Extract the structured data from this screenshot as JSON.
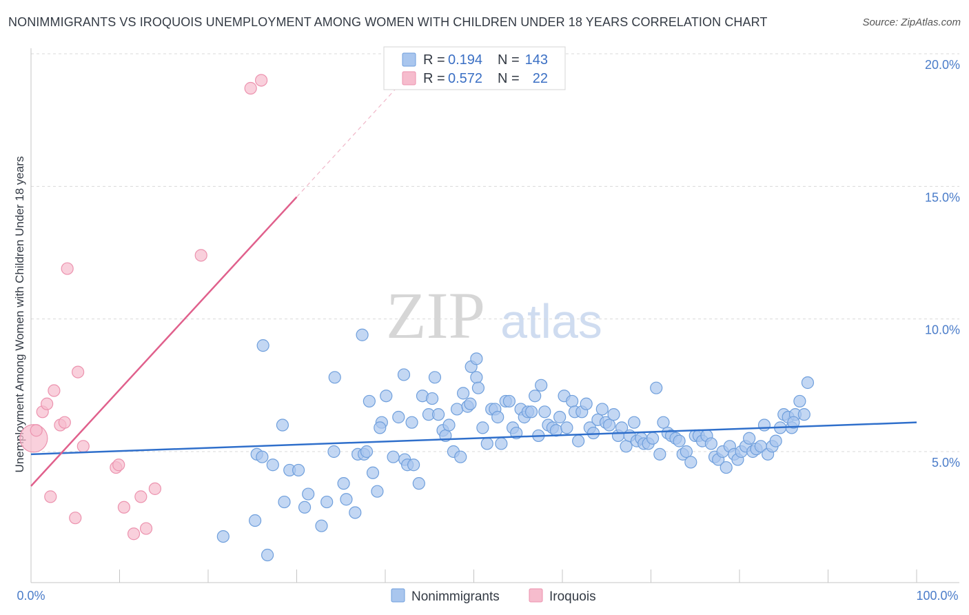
{
  "title": "NONIMMIGRANTS VS IROQUOIS UNEMPLOYMENT AMONG WOMEN WITH CHILDREN UNDER 18 YEARS CORRELATION CHART",
  "source": "Source: ZipAtlas.com",
  "colors": {
    "nonimmigrants_fill": "#a9c6ee",
    "nonimmigrants_stroke": "#6f9fdc",
    "nonimmigrants_line": "#2f6fcb",
    "iroquois_fill": "#f6bccd",
    "iroquois_stroke": "#ec92ae",
    "iroquois_line": "#e0608c",
    "tick_text": "#4a7cc9",
    "grid": "#d9d9d9"
  },
  "legend": {
    "r_label": "R =",
    "n_label": "N =",
    "rows": [
      {
        "series": "Nonimmigrants",
        "r": "0.194",
        "n": "143"
      },
      {
        "series": "Iroquois",
        "r": "0.572",
        "n": "22"
      }
    ]
  },
  "chart_data": {
    "type": "scatter",
    "title": "NONIMMIGRANTS VS IROQUOIS UNEMPLOYMENT AMONG WOMEN WITH CHILDREN UNDER 18 YEARS CORRELATION CHART",
    "xlabel": "",
    "ylabel": "Unemployment Among Women with Children Under 18 years",
    "xlim": [
      0,
      100
    ],
    "ylim": [
      0,
      20.5
    ],
    "x_tick_labels": [
      "0.0%",
      "100.0%"
    ],
    "y_ticks": [
      5,
      10,
      15,
      20
    ],
    "y_tick_labels": [
      "5.0%",
      "10.0%",
      "15.0%",
      "20.0%"
    ],
    "grid": "horizontal dashed",
    "legend_position": "top-center",
    "watermark": {
      "zip": "ZIP",
      "atlas": "atlas"
    },
    "series": [
      {
        "name": "Nonimmigrants",
        "r": 0.194,
        "n": 143,
        "trend": {
          "x": [
            0,
            100
          ],
          "y": [
            4.9,
            6.1
          ]
        },
        "points": [
          [
            21.7,
            1.8
          ],
          [
            25.3,
            2.4
          ],
          [
            25.5,
            4.9
          ],
          [
            26.1,
            4.8
          ],
          [
            26.2,
            9.0
          ],
          [
            26.7,
            1.1
          ],
          [
            27.3,
            4.5
          ],
          [
            28.4,
            6.0
          ],
          [
            28.6,
            3.1
          ],
          [
            29.2,
            4.3
          ],
          [
            30.2,
            4.3
          ],
          [
            30.9,
            2.9
          ],
          [
            31.3,
            3.4
          ],
          [
            32.8,
            2.2
          ],
          [
            33.4,
            3.1
          ],
          [
            34.2,
            5.0
          ],
          [
            34.3,
            7.8
          ],
          [
            35.3,
            3.8
          ],
          [
            35.6,
            3.2
          ],
          [
            36.6,
            2.7
          ],
          [
            36.9,
            4.9
          ],
          [
            37.6,
            4.9
          ],
          [
            37.9,
            5.0
          ],
          [
            37.4,
            9.4
          ],
          [
            38.2,
            6.9
          ],
          [
            38.6,
            4.2
          ],
          [
            39.1,
            3.5
          ],
          [
            39.6,
            6.1
          ],
          [
            39.4,
            5.9
          ],
          [
            40.1,
            7.1
          ],
          [
            40.9,
            4.8
          ],
          [
            41.5,
            6.3
          ],
          [
            42.2,
            4.7
          ],
          [
            42.5,
            4.5
          ],
          [
            42.1,
            7.9
          ],
          [
            43.0,
            6.1
          ],
          [
            43.2,
            4.5
          ],
          [
            43.8,
            3.8
          ],
          [
            44.2,
            7.1
          ],
          [
            44.9,
            6.4
          ],
          [
            45.3,
            7.0
          ],
          [
            45.6,
            7.8
          ],
          [
            46.0,
            6.4
          ],
          [
            46.5,
            5.8
          ],
          [
            46.8,
            5.6
          ],
          [
            47.2,
            6.0
          ],
          [
            47.7,
            5.0
          ],
          [
            48.1,
            6.6
          ],
          [
            48.5,
            4.8
          ],
          [
            48.8,
            7.2
          ],
          [
            49.3,
            6.7
          ],
          [
            49.6,
            6.8
          ],
          [
            49.7,
            8.2
          ],
          [
            50.3,
            7.8
          ],
          [
            50.5,
            7.4
          ],
          [
            50.3,
            8.5
          ],
          [
            51.0,
            5.9
          ],
          [
            51.5,
            5.3
          ],
          [
            52.0,
            6.6
          ],
          [
            52.4,
            6.6
          ],
          [
            52.7,
            6.3
          ],
          [
            53.1,
            5.3
          ],
          [
            53.6,
            6.9
          ],
          [
            54.0,
            6.9
          ],
          [
            54.4,
            5.9
          ],
          [
            54.8,
            5.7
          ],
          [
            55.3,
            6.6
          ],
          [
            55.7,
            6.3
          ],
          [
            56.1,
            6.5
          ],
          [
            56.5,
            6.5
          ],
          [
            56.9,
            7.1
          ],
          [
            57.3,
            5.6
          ],
          [
            57.6,
            7.5
          ],
          [
            58.0,
            6.5
          ],
          [
            58.4,
            6.0
          ],
          [
            58.9,
            5.9
          ],
          [
            59.3,
            5.8
          ],
          [
            59.7,
            6.3
          ],
          [
            60.2,
            7.1
          ],
          [
            60.5,
            5.9
          ],
          [
            61.1,
            6.9
          ],
          [
            61.4,
            6.5
          ],
          [
            61.8,
            5.4
          ],
          [
            62.2,
            6.5
          ],
          [
            62.7,
            6.8
          ],
          [
            63.1,
            5.9
          ],
          [
            63.5,
            5.7
          ],
          [
            64.0,
            6.2
          ],
          [
            64.5,
            6.6
          ],
          [
            64.9,
            6.1
          ],
          [
            65.3,
            6.0
          ],
          [
            65.8,
            6.4
          ],
          [
            66.3,
            5.6
          ],
          [
            66.7,
            5.9
          ],
          [
            67.2,
            5.2
          ],
          [
            67.6,
            5.6
          ],
          [
            68.1,
            6.1
          ],
          [
            68.4,
            5.4
          ],
          [
            68.9,
            5.5
          ],
          [
            69.2,
            5.3
          ],
          [
            69.7,
            5.3
          ],
          [
            70.2,
            5.5
          ],
          [
            70.6,
            7.4
          ],
          [
            71.0,
            4.9
          ],
          [
            71.4,
            6.1
          ],
          [
            71.9,
            5.7
          ],
          [
            72.3,
            5.6
          ],
          [
            72.8,
            5.5
          ],
          [
            73.2,
            5.4
          ],
          [
            73.6,
            4.9
          ],
          [
            74.0,
            5.0
          ],
          [
            74.5,
            4.6
          ],
          [
            75.0,
            5.6
          ],
          [
            75.4,
            5.6
          ],
          [
            75.8,
            5.4
          ],
          [
            76.3,
            5.6
          ],
          [
            76.8,
            5.3
          ],
          [
            77.2,
            4.8
          ],
          [
            77.6,
            4.7
          ],
          [
            78.1,
            5.0
          ],
          [
            78.5,
            4.4
          ],
          [
            78.9,
            5.2
          ],
          [
            79.4,
            4.9
          ],
          [
            79.8,
            4.7
          ],
          [
            80.2,
            5.0
          ],
          [
            80.7,
            5.2
          ],
          [
            81.1,
            5.5
          ],
          [
            81.5,
            5.0
          ],
          [
            81.9,
            5.1
          ],
          [
            82.4,
            5.2
          ],
          [
            82.8,
            6.0
          ],
          [
            83.2,
            4.9
          ],
          [
            83.7,
            5.2
          ],
          [
            84.1,
            5.4
          ],
          [
            84.6,
            5.9
          ],
          [
            85.0,
            6.4
          ],
          [
            85.5,
            6.3
          ],
          [
            85.9,
            5.9
          ],
          [
            86.3,
            6.4
          ],
          [
            86.8,
            6.9
          ],
          [
            87.3,
            6.4
          ],
          [
            87.7,
            7.6
          ],
          [
            86.1,
            6.1
          ]
        ]
      },
      {
        "name": "Iroquois",
        "r": 0.572,
        "n": 22,
        "trend": {
          "x": [
            0,
            30
          ],
          "y": [
            3.7,
            14.6
          ]
        },
        "trend_dashed": {
          "x": [
            30,
            50
          ],
          "y": [
            14.6,
            21.9
          ]
        },
        "points": [
          [
            0.3,
            5.5
          ],
          [
            0.6,
            5.8
          ],
          [
            1.3,
            6.5
          ],
          [
            1.8,
            6.8
          ],
          [
            2.2,
            3.3
          ],
          [
            2.6,
            7.3
          ],
          [
            3.3,
            6.0
          ],
          [
            3.8,
            6.1
          ],
          [
            4.1,
            11.9
          ],
          [
            5.0,
            2.5
          ],
          [
            5.3,
            8.0
          ],
          [
            5.9,
            5.2
          ],
          [
            9.6,
            4.4
          ],
          [
            9.9,
            4.5
          ],
          [
            10.5,
            2.9
          ],
          [
            11.6,
            1.9
          ],
          [
            12.4,
            3.3
          ],
          [
            13.0,
            2.1
          ],
          [
            14.0,
            3.6
          ],
          [
            19.2,
            12.4
          ],
          [
            24.8,
            18.7
          ],
          [
            26.0,
            19.0
          ]
        ]
      }
    ]
  }
}
